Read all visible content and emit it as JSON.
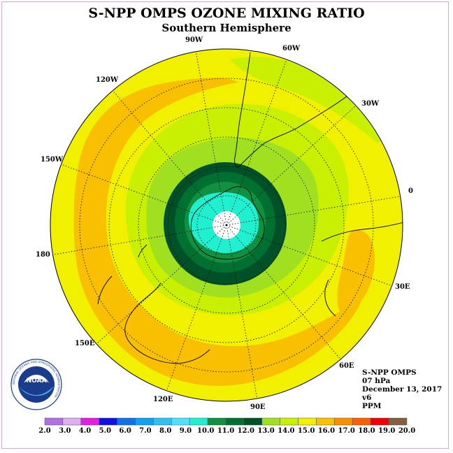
{
  "title": "S-NPP OMPS OZONE MIXING RATIO",
  "subtitle": "Southern Hemisphere",
  "longitude_labels": [
    "90W",
    "60W",
    "30W",
    "0",
    "30E",
    "60E",
    "90E",
    "120E",
    "150E",
    "180",
    "150W",
    "120W"
  ],
  "info": {
    "instrument": "S-NPP OMPS",
    "pressure": "07 hPa",
    "date": "December 13, 2017",
    "version": "v6",
    "units": "PPM"
  },
  "logo": {
    "text": "NOAA",
    "ring_text": "NATIONAL OCEANIC AND ATMOSPHERIC ADMINISTRATION"
  },
  "colorbar": {
    "ticks": [
      "2.0",
      "3.0",
      "4.0",
      "5.0",
      "6.0",
      "7.0",
      "8.0",
      "9.0",
      "10.0",
      "11.0",
      "12.0",
      "13.0",
      "14.0",
      "15.0",
      "16.0",
      "17.0",
      "18.0",
      "19.0",
      "20.0"
    ],
    "colors": [
      "#b070e0",
      "#dcb0f0",
      "#e020e0",
      "#1010e0",
      "#1070e8",
      "#10a0f0",
      "#30c0f0",
      "#50e0ff",
      "#20f0d0",
      "#109040",
      "#007030",
      "#005028",
      "#a0e020",
      "#c8f000",
      "#f0f000",
      "#f8c000",
      "#f89000",
      "#f86000",
      "#f00000",
      "#806040"
    ]
  },
  "map_colors": {
    "background_band": "#f0f000",
    "orange_band": "#f8c000",
    "light_green": "#c8f000",
    "green": "#a0e020",
    "dark_green": "#007030",
    "darker_green": "#005028",
    "mid_green": "#109040",
    "cyan": "#20f0d0",
    "pole": "#ffffff"
  }
}
